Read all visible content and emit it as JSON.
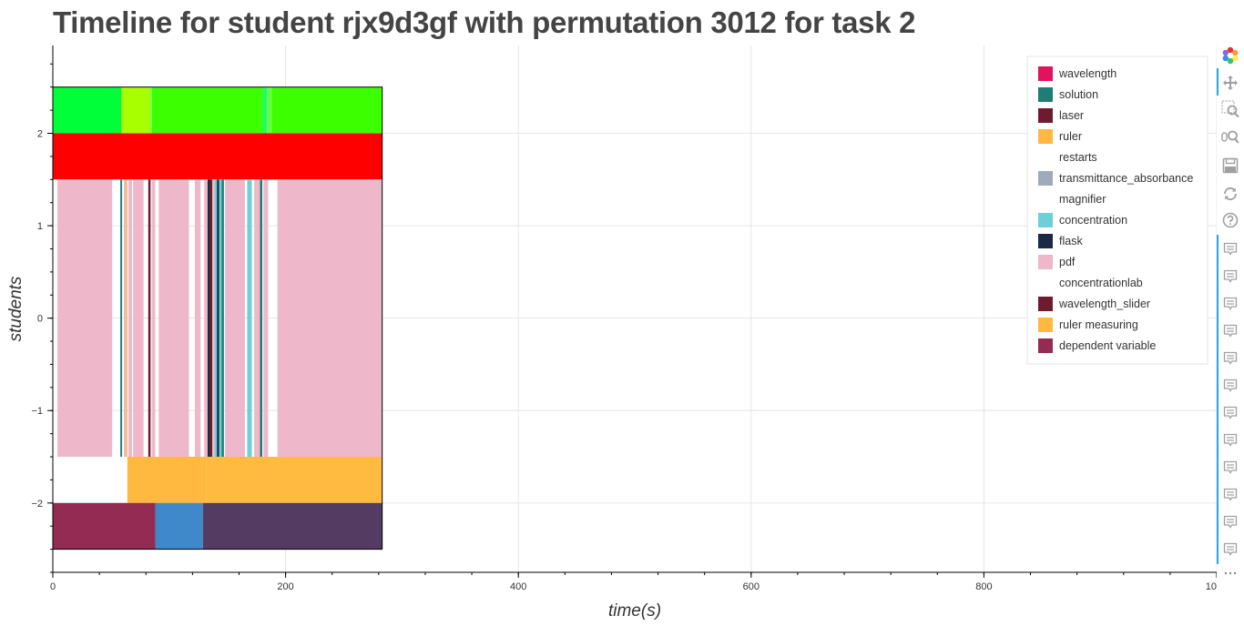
{
  "chart_data": {
    "type": "timeline",
    "title": "Timeline for student rjx9d3gf with permutation 3012 for task 2",
    "xlabel": "time(s)",
    "ylabel": "students",
    "xlim": [
      0,
      1000
    ],
    "ylim": [
      -2.75,
      2.95
    ],
    "x_ticks": [
      0,
      200,
      400,
      600,
      800,
      1000
    ],
    "y_ticks": [
      {
        "value": 2,
        "label": "2"
      },
      {
        "value": 1,
        "label": "1"
      },
      {
        "value": 0,
        "label": "0"
      },
      {
        "value": -1,
        "label": "−1"
      },
      {
        "value": -2,
        "label": "−2"
      }
    ],
    "grid": true,
    "legend_position": "top-right",
    "legend": [
      {
        "label": "wavelength",
        "color": "#e0135c"
      },
      {
        "label": "solution",
        "color": "#1f7d76"
      },
      {
        "label": "laser",
        "color": "#6e1b30"
      },
      {
        "label": "ruler",
        "color": "#ffb840"
      },
      {
        "label": "restarts",
        "color": null
      },
      {
        "label": "transmittance_absorbance",
        "color": "#9eabbb"
      },
      {
        "label": "magnifier",
        "color": null
      },
      {
        "label": "concentration",
        "color": "#6dd0d8"
      },
      {
        "label": "flask",
        "color": "#1b2a44"
      },
      {
        "label": "pdf",
        "color": "#efb8ca"
      },
      {
        "label": "concentrationlab",
        "color": null
      },
      {
        "label": "wavelength_slider",
        "color": "#6e1b30"
      },
      {
        "label": "ruler measuring",
        "color": "#ffb840"
      },
      {
        "label": "dependent variable",
        "color": "#942b52"
      }
    ],
    "rows": [
      {
        "y0": 2.0,
        "y1": 2.5,
        "segments": [
          {
            "start": 0,
            "end": 59,
            "color": "#00ff38"
          },
          {
            "start": 59,
            "end": 83,
            "color": "#a8ff00"
          },
          {
            "start": 83,
            "end": 85,
            "color": "#80ff40"
          },
          {
            "start": 85,
            "end": 180,
            "color": "#3cff00"
          },
          {
            "start": 180,
            "end": 184,
            "color": "#20ff60"
          },
          {
            "start": 184,
            "end": 188,
            "color": "#66ff44"
          },
          {
            "start": 188,
            "end": 283,
            "color": "#3cff00"
          }
        ]
      },
      {
        "y0": 1.5,
        "y1": 2.0,
        "segments": [
          {
            "start": 0,
            "end": 283,
            "color": "#ff0000"
          }
        ]
      },
      {
        "y0": -1.5,
        "y1": 1.5,
        "segments": [
          {
            "start": 4,
            "end": 51,
            "color": "#efb8ca"
          },
          {
            "start": 58,
            "end": 59.5,
            "color": "#1f7d76"
          },
          {
            "start": 61,
            "end": 63,
            "color": "#efb8ca"
          },
          {
            "start": 63,
            "end": 64,
            "color": "#ffb840"
          },
          {
            "start": 65,
            "end": 68,
            "color": "#efb8ca"
          },
          {
            "start": 69,
            "end": 78,
            "color": "#efb8ca"
          },
          {
            "start": 82,
            "end": 84,
            "color": "#6e1b30"
          },
          {
            "start": 85,
            "end": 88,
            "color": "#efb8ca"
          },
          {
            "start": 91,
            "end": 117,
            "color": "#efb8ca"
          },
          {
            "start": 122,
            "end": 127,
            "color": "#efb8ca"
          },
          {
            "start": 130,
            "end": 133,
            "color": "#efb8ca"
          },
          {
            "start": 133,
            "end": 135,
            "color": "#1b2a44"
          },
          {
            "start": 135,
            "end": 137,
            "color": "#6e1b30"
          },
          {
            "start": 137,
            "end": 139,
            "color": "#efb8ca"
          },
          {
            "start": 139,
            "end": 141,
            "color": "#6dd0d8"
          },
          {
            "start": 141,
            "end": 143,
            "color": "#1b2a44"
          },
          {
            "start": 143,
            "end": 145,
            "color": "#6dd0d8"
          },
          {
            "start": 145,
            "end": 147,
            "color": "#1f7d76"
          },
          {
            "start": 148,
            "end": 165,
            "color": "#efb8ca"
          },
          {
            "start": 167,
            "end": 171,
            "color": "#6dd0d8"
          },
          {
            "start": 173,
            "end": 178,
            "color": "#efb8ca"
          },
          {
            "start": 178,
            "end": 180,
            "color": "#1f7d76"
          },
          {
            "start": 181,
            "end": 185,
            "color": "#efb8ca"
          },
          {
            "start": 193,
            "end": 283,
            "color": "#efb8ca"
          }
        ]
      },
      {
        "y0": -2.0,
        "y1": -1.5,
        "segments": [
          {
            "start": 64,
            "end": 132,
            "color": "#ffb840"
          },
          {
            "start": 132,
            "end": 283,
            "color": "#ffba42"
          }
        ]
      },
      {
        "y0": -2.5,
        "y1": -2.0,
        "segments": [
          {
            "start": 0,
            "end": 88,
            "color": "#942b52"
          },
          {
            "start": 88,
            "end": 129,
            "color": "#3f88c9"
          },
          {
            "start": 129,
            "end": 283,
            "color": "#533b62"
          }
        ]
      }
    ]
  },
  "toolbar": {
    "tools": [
      {
        "name": "bokeh-logo-icon",
        "interactable": true
      },
      {
        "name": "pan-icon",
        "interactable": true
      },
      {
        "name": "box-zoom-icon",
        "interactable": true
      },
      {
        "name": "wheel-zoom-icon",
        "interactable": true
      },
      {
        "name": "save-icon",
        "interactable": true
      },
      {
        "name": "reset-icon",
        "interactable": true
      },
      {
        "name": "help-icon",
        "interactable": true
      },
      {
        "name": "hover-icon",
        "interactable": true,
        "count": 12
      },
      {
        "name": "more-icon",
        "interactable": true
      }
    ],
    "accent_color": "#26aae1"
  }
}
